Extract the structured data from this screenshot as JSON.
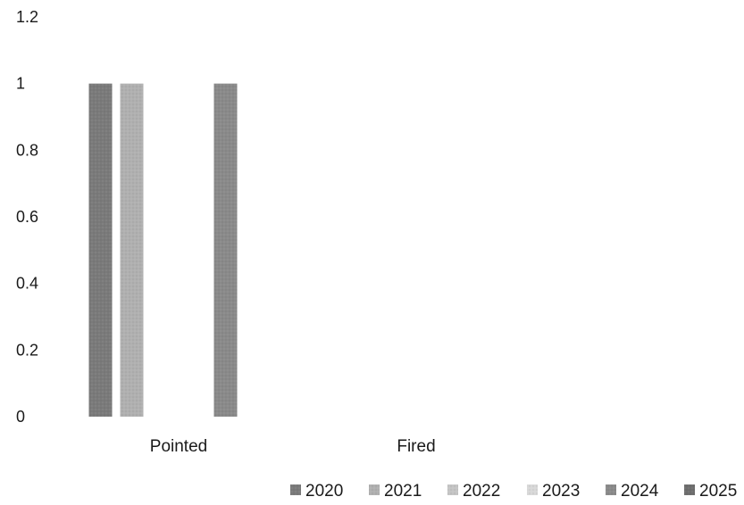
{
  "chart_data": {
    "type": "bar",
    "categories": [
      "Pointed",
      "Fired"
    ],
    "series": [
      {
        "name": "2020",
        "values": [
          1,
          0
        ],
        "color": "#7a7a7a"
      },
      {
        "name": "2021",
        "values": [
          1,
          0
        ],
        "color": "#b0b0b0"
      },
      {
        "name": "2022",
        "values": [
          0,
          0
        ],
        "color": "#c4c4c4"
      },
      {
        "name": "2023",
        "values": [
          0,
          0
        ],
        "color": "#d8d8d8"
      },
      {
        "name": "2024",
        "values": [
          1,
          0
        ],
        "color": "#8a8a8a"
      },
      {
        "name": "2025",
        "values": [
          0,
          0
        ],
        "color": "#6e6e6e"
      }
    ],
    "yticks": [
      "0",
      "0.2",
      "0.4",
      "0.6",
      "0.8",
      "1",
      "1.2"
    ],
    "ylim": [
      0,
      1.2
    ],
    "grid": false,
    "legend_position": "bottom-right",
    "title": "",
    "xlabel": "",
    "ylabel": ""
  }
}
